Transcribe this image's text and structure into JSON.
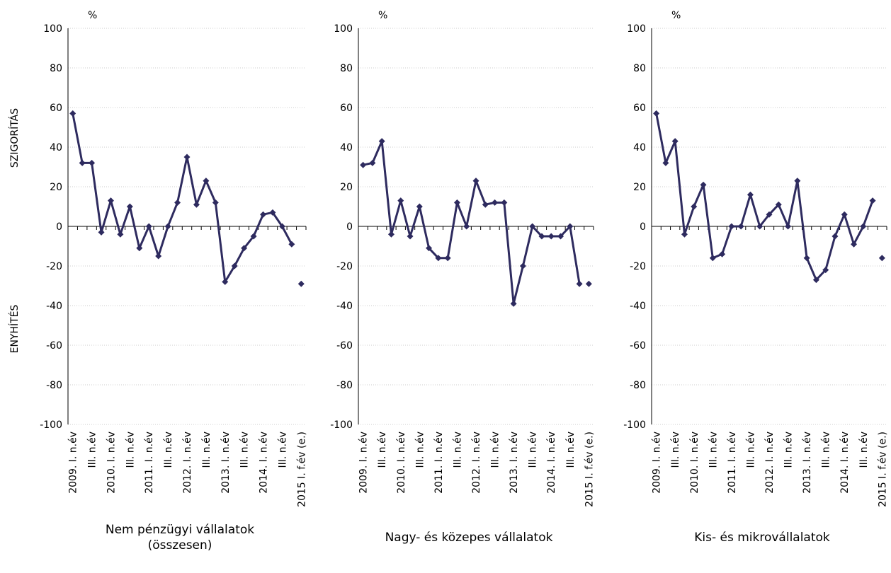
{
  "chart_data": [
    {
      "type": "line",
      "title": "Nem pénzügyi vállalatok (összesen)",
      "unit": "%",
      "ylabel_top": "SZIGORÍTÁS",
      "ylabel_bottom": "ENYHÍTÉS",
      "categories": [
        "2009. I. n.év",
        null,
        "III. n.év",
        null,
        "2010. I. n.év",
        null,
        "III. n.év",
        null,
        "2011. I. n.év",
        null,
        "III. n.év",
        null,
        "2012. I. n.év",
        null,
        "III. n.év",
        null,
        "2013. I. n.év",
        null,
        "III. n.év",
        null,
        "2014. I. n.év",
        null,
        "III. n.év",
        null,
        "2015 I. f.év (e.)"
      ],
      "series": [
        {
          "color": "#2e2b5f",
          "style": "line-markers",
          "values": [
            57,
            32,
            32,
            -3,
            13,
            -4,
            10,
            -11,
            0,
            -15,
            0,
            12,
            35,
            11,
            23,
            12,
            -28,
            -20,
            -11,
            -5,
            6,
            7,
            0,
            -9,
            null
          ]
        },
        {
          "color": "#2e2b5f",
          "style": "markers",
          "values": [
            null,
            null,
            null,
            null,
            null,
            null,
            null,
            null,
            null,
            null,
            null,
            null,
            null,
            null,
            null,
            null,
            null,
            null,
            null,
            null,
            null,
            null,
            null,
            null,
            -29
          ]
        }
      ],
      "ylim": [
        -100,
        100
      ],
      "yticks": [
        -100,
        -80,
        -60,
        -40,
        -20,
        0,
        20,
        40,
        60,
        80,
        100
      ],
      "grid": true
    },
    {
      "type": "line",
      "title": "Nagy- és közepes vállalatok",
      "unit": "%",
      "categories": [
        "2009. I. n.év",
        null,
        "III. n.év",
        null,
        "2010. I. n.év",
        null,
        "III. n.év",
        null,
        "2011. I. n.év",
        null,
        "III. n.év",
        null,
        "2012. I. n.év",
        null,
        "III. n.év",
        null,
        "2013. I. n.év",
        null,
        "III. n.év",
        null,
        "2014. I. n.év",
        null,
        "III. n.év",
        null,
        "2015 I. f.év (e.)"
      ],
      "series": [
        {
          "color": "#2e2b5f",
          "style": "line-markers",
          "values": [
            31,
            32,
            43,
            -4,
            13,
            -5,
            10,
            -11,
            -16,
            -16,
            12,
            0,
            23,
            11,
            12,
            12,
            -39,
            -20,
            0,
            -5,
            -5,
            -5,
            0,
            -29,
            null
          ]
        },
        {
          "color": "#2e2b5f",
          "style": "markers",
          "values": [
            null,
            null,
            null,
            null,
            null,
            null,
            null,
            null,
            null,
            null,
            null,
            null,
            null,
            null,
            null,
            null,
            null,
            null,
            null,
            null,
            null,
            null,
            null,
            null,
            -29
          ]
        }
      ],
      "ylim": [
        -100,
        100
      ],
      "yticks": [
        -100,
        -80,
        -60,
        -40,
        -20,
        0,
        20,
        40,
        60,
        80,
        100
      ],
      "grid": true
    },
    {
      "type": "line",
      "title": "Kis- és mikrovállalatok",
      "unit": "%",
      "categories": [
        "2009. I. n.év",
        null,
        "III. n.év",
        null,
        "2010. I. n.év",
        null,
        "III. n.év",
        null,
        "2011. I. n.év",
        null,
        "III. n.év",
        null,
        "2012. I. n.év",
        null,
        "III. n.év",
        null,
        "2013. I. n.év",
        null,
        "III. n.év",
        null,
        "2014. I. n.év",
        null,
        "III. n.év",
        null,
        "2015 I. f.év (e.)"
      ],
      "series": [
        {
          "color": "#2e2b5f",
          "style": "line-markers",
          "values": [
            57,
            32,
            43,
            -4,
            10,
            21,
            -16,
            -14,
            0,
            0,
            16,
            0,
            6,
            11,
            0,
            23,
            -16,
            -27,
            -22,
            -5,
            6,
            -9,
            0,
            13,
            null
          ]
        },
        {
          "color": "#2e2b5f",
          "style": "markers",
          "values": [
            null,
            null,
            null,
            null,
            null,
            null,
            null,
            null,
            null,
            null,
            null,
            null,
            null,
            null,
            null,
            null,
            null,
            null,
            null,
            null,
            null,
            null,
            null,
            null,
            -16
          ]
        }
      ],
      "ylim": [
        -100,
        100
      ],
      "yticks": [
        -100,
        -80,
        -60,
        -40,
        -20,
        0,
        20,
        40,
        60,
        80,
        100
      ],
      "grid": true
    }
  ]
}
